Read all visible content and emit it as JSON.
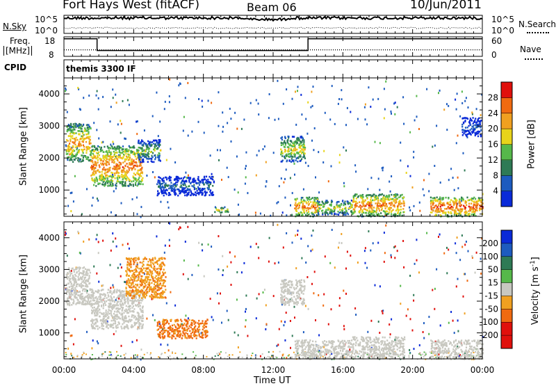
{
  "header": {
    "station": "Fort Hays West (fitACF)",
    "beam": "Beam 06",
    "date": "10/Jun/2011"
  },
  "noise_panel": {
    "left_label": "N.Sky",
    "right_label": "N.Search",
    "ticks": [
      "10^5",
      "10^0"
    ],
    "sky_level": 0.85,
    "search_level": 0.3
  },
  "freq_panel": {
    "left_label_1": "Freq.",
    "left_label_2": "[MHz]",
    "right_label": "Nave",
    "left_ticks": [
      "18",
      "8"
    ],
    "right_ticks": [
      "60",
      "0"
    ],
    "freq_steps": [
      {
        "from_h": 0.0,
        "to_h": 1.9,
        "mhz": 17
      },
      {
        "from_h": 1.9,
        "to_h": 14.0,
        "mhz": 11
      },
      {
        "from_h": 14.0,
        "to_h": 24.0,
        "mhz": 17
      }
    ],
    "nave": 20
  },
  "cpid": {
    "label": "CPID",
    "value": "themis 3300 IF"
  },
  "x_axis": {
    "label": "Time UT",
    "ticks": [
      "00:00",
      "04:00",
      "08:00",
      "12:00",
      "16:00",
      "20:00",
      "00:00"
    ],
    "tick_hours": [
      0,
      4,
      8,
      12,
      16,
      20,
      24
    ]
  },
  "y_axis": {
    "label": "Slant Range [km]",
    "ticks": [
      "4000",
      "3000",
      "2000",
      "1000"
    ],
    "tick_values": [
      4000,
      3000,
      2000,
      1000
    ],
    "range": [
      180,
      4500
    ]
  },
  "power_colorbar": {
    "label": "Power [dB]",
    "ticks": [
      "28",
      "24",
      "20",
      "16",
      "12",
      "8",
      "4"
    ],
    "colors": [
      "#0a2ad8",
      "#1d5bbf",
      "#2e7a55",
      "#56b84a",
      "#e8d41a",
      "#f0a020",
      "#f06a10",
      "#e0100c"
    ]
  },
  "velocity_colorbar": {
    "label": "Velocity [m s",
    "label_sup": "-1",
    "label_end": "]",
    "ticks": [
      "200",
      "100",
      "50",
      "15",
      "-15",
      "-50",
      "-100",
      "-200"
    ],
    "colors": [
      "#0a2ad8",
      "#1d5bbf",
      "#2e7a55",
      "#56b84a",
      "#c8c8c0",
      "#f0a020",
      "#f06a10",
      "#e0100c",
      "#e0100c"
    ]
  },
  "chart_data": {
    "type": "heatmap",
    "title": "Fort Hays West (fitACF) Beam 06 10/Jun/2011",
    "xlabel": "Time UT",
    "ylabel": "Slant Range [km]",
    "xlim_hours": [
      0,
      24
    ],
    "ylim_km": [
      180,
      4500
    ],
    "power_regions": [
      {
        "t0": 0.1,
        "t1": 1.5,
        "r0": 1900,
        "r1": 3100,
        "level": 24
      },
      {
        "t0": 1.5,
        "t1": 4.5,
        "r0": 1150,
        "r1": 2400,
        "level": 26
      },
      {
        "t0": 4.2,
        "t1": 5.5,
        "r0": 1900,
        "r1": 2600,
        "level": 16
      },
      {
        "t0": 5.3,
        "t1": 8.6,
        "r0": 850,
        "r1": 1450,
        "level": 10
      },
      {
        "t0": 8.6,
        "t1": 9.4,
        "r0": 300,
        "r1": 500,
        "level": 20
      },
      {
        "t0": 12.4,
        "t1": 13.8,
        "r0": 1900,
        "r1": 2700,
        "level": 20
      },
      {
        "t0": 13.2,
        "t1": 14.6,
        "r0": 200,
        "r1": 800,
        "level": 26
      },
      {
        "t0": 14.5,
        "t1": 16.5,
        "r0": 250,
        "r1": 700,
        "level": 20
      },
      {
        "t0": 16.5,
        "t1": 19.5,
        "r0": 200,
        "r1": 900,
        "level": 26
      },
      {
        "t0": 21.0,
        "t1": 24.0,
        "r0": 200,
        "r1": 800,
        "level": 28
      },
      {
        "t0": 22.8,
        "t1": 23.9,
        "r0": 2700,
        "r1": 3300,
        "level": 8
      }
    ],
    "velocity_regions": [
      {
        "t0": 0.1,
        "t1": 1.5,
        "r0": 1900,
        "r1": 3100,
        "velocity": 0
      },
      {
        "t0": 1.5,
        "t1": 4.5,
        "r0": 1150,
        "r1": 2400,
        "velocity": 0
      },
      {
        "t0": 3.5,
        "t1": 5.8,
        "r0": 2100,
        "r1": 3400,
        "velocity": -40
      },
      {
        "t0": 5.3,
        "t1": 8.2,
        "r0": 850,
        "r1": 1450,
        "velocity": -60
      },
      {
        "t0": 12.4,
        "t1": 13.8,
        "r0": 1900,
        "r1": 2700,
        "velocity": 0
      },
      {
        "t0": 13.2,
        "t1": 16.5,
        "r0": 200,
        "r1": 800,
        "velocity": 0
      },
      {
        "t0": 16.5,
        "t1": 19.5,
        "r0": 200,
        "r1": 900,
        "velocity": 0
      },
      {
        "t0": 21.0,
        "t1": 24.0,
        "r0": 200,
        "r1": 800,
        "velocity": 0
      }
    ]
  }
}
